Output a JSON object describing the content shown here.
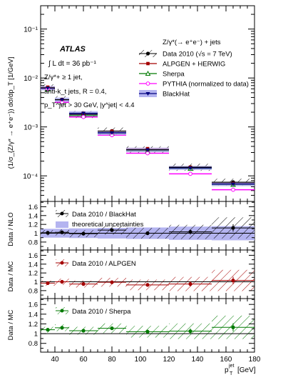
{
  "chart_data": {
    "type": "line",
    "x_bins": [
      [
        30,
        40
      ],
      [
        40,
        50
      ],
      [
        50,
        70
      ],
      [
        70,
        90
      ],
      [
        90,
        120
      ],
      [
        120,
        150
      ],
      [
        150,
        180
      ]
    ],
    "x_centers": [
      35,
      45,
      60,
      80,
      105,
      135,
      165
    ],
    "xlim": [
      30,
      180
    ],
    "xticks": [
      40,
      60,
      80,
      100,
      120,
      140,
      160,
      180
    ],
    "xlabel_main": "p",
    "xlabel_sub": "T",
    "xlabel_sup": "jet",
    "xlabel_unit": "[GeV]",
    "top": {
      "ylabel": "(1/σ_{Z/γ* → e⁺e⁻}) dσ/dp_T [1/GeV]",
      "yscale": "log",
      "ylim": [
        3e-05,
        0.3
      ],
      "ytick_labels": [
        "10⁻⁴",
        "10⁻³",
        "10⁻²",
        "10⁻¹"
      ],
      "ytick_values": [
        0.0001,
        0.001,
        0.01,
        0.1
      ],
      "info": {
        "experiment": "ATLAS",
        "lumi": "∫ L dt = 36 pb⁻¹",
        "selection": "Z/γ*+ ≥ 1 jet,",
        "algorithm": "anti-k_t jets, R = 0.4,",
        "cuts": "p_T^jet > 30 GeV, |y^jet| < 4.4"
      },
      "legend_header": "Z/γ*(→ e⁺e⁻) + jets",
      "series": [
        {
          "name": "Data 2010 (√s = 7 TeV)",
          "color": "#000000",
          "values": [
            0.0063,
            0.0036,
            0.0018,
            0.00082,
            0.00034,
            0.00015,
            7.4e-05
          ]
        },
        {
          "name": "ALPGEN + HERWIG",
          "color": "#a50000",
          "values": [
            0.0065,
            0.0036,
            0.0019,
            0.00082,
            0.00036,
            0.00015,
            7e-05
          ]
        },
        {
          "name": "Sherpa",
          "color": "#007a00",
          "values": [
            0.0059,
            0.0032,
            0.0017,
            0.00074,
            0.00032,
            0.00014,
            6.6e-05
          ]
        },
        {
          "name": "PYTHIA (normalized to data)",
          "color": "#ff00ff",
          "values": [
            0.006,
            0.0032,
            0.0016,
            0.00068,
            0.00029,
            0.00011,
            5.2e-05
          ]
        },
        {
          "name": "BlackHat",
          "color": "#000080",
          "values": [
            0.0062,
            0.0036,
            0.0019,
            0.00076,
            0.00034,
            0.000145,
            6.8e-05
          ]
        }
      ]
    },
    "ratios": [
      {
        "ylabel": "Data / NLO",
        "ylim": [
          0.62,
          1.72
        ],
        "ytick_labels": [
          "0.8",
          "1",
          "1.2",
          "1.4",
          "1.6"
        ],
        "ytick_values": [
          0.8,
          1.0,
          1.2,
          1.4,
          1.6
        ],
        "legend": [
          "Data 2010 / BlackHat",
          "theoretical uncertainties"
        ],
        "values": [
          1.01,
          1.02,
          0.99,
          1.07,
          1.0,
          1.03,
          1.12
        ],
        "errors": [
          0.06,
          0.07,
          0.08,
          0.1,
          0.12,
          0.16,
          0.24
        ],
        "band": [
          0.1,
          0.1,
          0.11,
          0.12,
          0.13,
          0.15,
          0.16
        ],
        "color": "#000000",
        "hatch": "#000000",
        "band_color": "#b4b4f0"
      },
      {
        "ylabel": "Data / MC",
        "ylim": [
          0.62,
          1.72
        ],
        "ytick_labels": [
          "0.8",
          "1",
          "1.2",
          "1.4",
          "1.6"
        ],
        "ytick_values": [
          0.8,
          1.0,
          1.2,
          1.4,
          1.6
        ],
        "legend": [
          "Data 2010 / ALPGEN"
        ],
        "values": [
          0.97,
          1.0,
          0.95,
          0.99,
          0.93,
          0.95,
          1.03
        ],
        "errors": [
          0.06,
          0.07,
          0.08,
          0.1,
          0.12,
          0.16,
          0.24
        ],
        "color": "#a50000",
        "hatch": "#a50000"
      },
      {
        "ylabel": "Data / MC",
        "ylim": [
          0.62,
          1.72
        ],
        "ytick_labels": [
          "0.8",
          "1",
          "1.2",
          "1.4",
          "1.6"
        ],
        "ytick_values": [
          0.8,
          1.0,
          1.2,
          1.4,
          1.6
        ],
        "legend": [
          "Data 2010 / Sherpa"
        ],
        "values": [
          1.08,
          1.12,
          1.06,
          1.11,
          1.04,
          1.05,
          1.13
        ],
        "errors": [
          0.06,
          0.07,
          0.08,
          0.1,
          0.12,
          0.16,
          0.24
        ],
        "color": "#007a00",
        "hatch": "#007a00"
      }
    ]
  }
}
